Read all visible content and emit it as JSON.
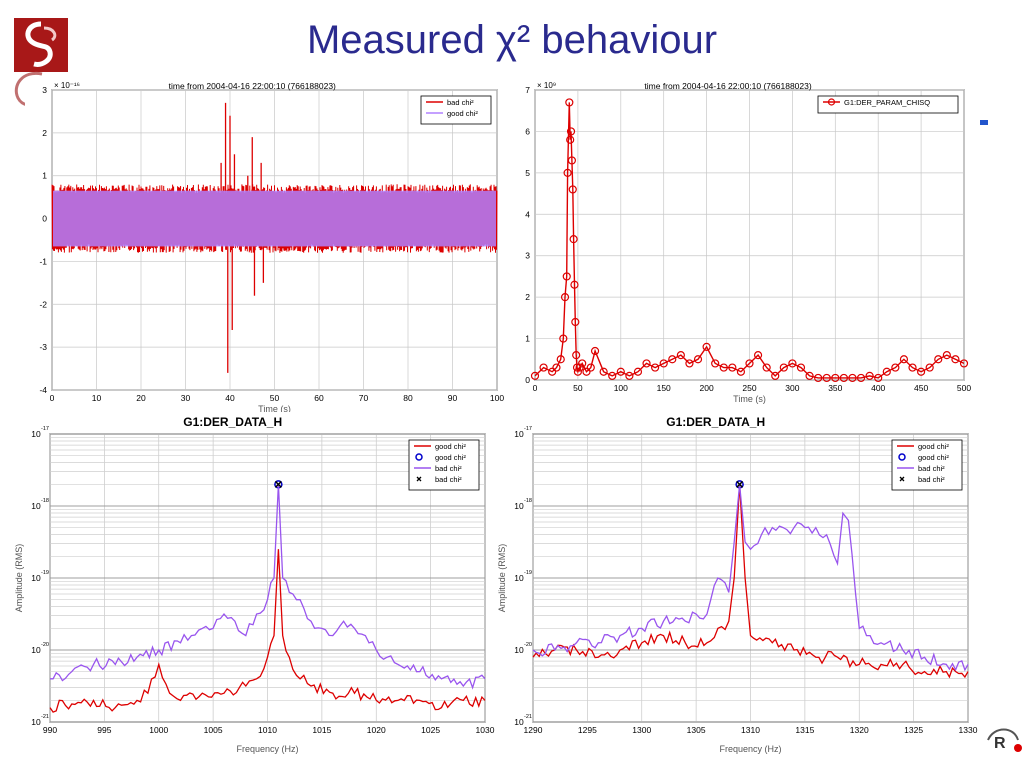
{
  "slide": {
    "title": "Measured χ² behaviour"
  },
  "chart_data": [
    {
      "id": "p1",
      "type": "line",
      "title": "time from 2004-04-16 22:00:10 (766188023)",
      "xlabel": "Time (s)",
      "ylabel": "",
      "exponent": "× 10⁻¹⁶",
      "xlim": [
        0,
        100
      ],
      "ylim": [
        -4,
        3
      ],
      "xticks": [
        "0",
        "10",
        "20",
        "30",
        "40",
        "50",
        "60",
        "70",
        "80",
        "90",
        "100"
      ],
      "yticks": [
        "-4",
        "-3",
        "-2",
        "-1",
        "0",
        "1",
        "2",
        "3"
      ],
      "legend_position": "top-right",
      "grid": true,
      "series": [
        {
          "name": "bad chi²",
          "color": "#dd0000",
          "envelope": 0.8,
          "bursts": [
            {
              "x": 38,
              "y": 1.3
            },
            {
              "x": 39,
              "y": 2.7
            },
            {
              "x": 39.5,
              "y": -3.6
            },
            {
              "x": 40,
              "y": 2.4
            },
            {
              "x": 40.5,
              "y": -2.6
            },
            {
              "x": 41,
              "y": 1.5
            },
            {
              "x": 44,
              "y": 1.0
            },
            {
              "x": 45,
              "y": 1.9
            },
            {
              "x": 45.5,
              "y": -1.8
            },
            {
              "x": 47,
              "y": 1.3
            },
            {
              "x": 47.5,
              "y": -1.5
            }
          ]
        },
        {
          "name": "good chi²",
          "color": "#b080ff",
          "envelope": 0.65
        }
      ]
    },
    {
      "id": "p2",
      "type": "line",
      "title": "time from 2004-04-16 22:00:10 (766188023)",
      "xlabel": "Time (s)",
      "ylabel": "",
      "exponent": "× 10⁹",
      "xlim": [
        0,
        500
      ],
      "ylim": [
        0,
        7
      ],
      "xticks": [
        "0",
        "50",
        "100",
        "150",
        "200",
        "250",
        "300",
        "350",
        "400",
        "450",
        "500"
      ],
      "yticks": [
        "0",
        "1",
        "2",
        "3",
        "4",
        "5",
        "6",
        "7"
      ],
      "legend_position": "top-right",
      "grid": true,
      "series": [
        {
          "name": "G1:DER_PARAM_CHISQ",
          "color": "#dd0000",
          "marker": "circle",
          "x": [
            0,
            10,
            20,
            25,
            30,
            33,
            35,
            37,
            38,
            40,
            41,
            42,
            43,
            44,
            45,
            46,
            47,
            48,
            49,
            50,
            52,
            55,
            60,
            65,
            70,
            80,
            90,
            100,
            110,
            120,
            130,
            140,
            150,
            160,
            170,
            180,
            190,
            200,
            210,
            220,
            230,
            240,
            250,
            260,
            270,
            280,
            290,
            300,
            310,
            320,
            330,
            340,
            350,
            360,
            370,
            380,
            390,
            400,
            410,
            420,
            430,
            440,
            450,
            460,
            470,
            480,
            490,
            500
          ],
          "y": [
            0.1,
            0.3,
            0.2,
            0.3,
            0.5,
            1.0,
            2.0,
            2.5,
            5.0,
            6.7,
            5.8,
            6.0,
            5.3,
            4.6,
            3.4,
            2.3,
            1.4,
            0.6,
            0.3,
            0.2,
            0.3,
            0.4,
            0.2,
            0.3,
            0.7,
            0.2,
            0.1,
            0.2,
            0.1,
            0.2,
            0.4,
            0.3,
            0.4,
            0.5,
            0.6,
            0.4,
            0.5,
            0.8,
            0.4,
            0.3,
            0.3,
            0.2,
            0.4,
            0.6,
            0.3,
            0.1,
            0.3,
            0.4,
            0.3,
            0.1,
            0.05,
            0.05,
            0.05,
            0.05,
            0.05,
            0.05,
            0.1,
            0.05,
            0.2,
            0.3,
            0.5,
            0.3,
            0.2,
            0.3,
            0.5,
            0.6,
            0.5,
            0.4
          ]
        }
      ]
    },
    {
      "id": "p3",
      "type": "line",
      "title": "G1:DER_DATA_H",
      "xlabel": "Frequency (Hz)",
      "ylabel": "Amplitude (RMS)",
      "log_y": true,
      "xlim": [
        990,
        1030
      ],
      "ylim_exp": [
        -21,
        -17
      ],
      "xticks": [
        "990",
        "995",
        "1000",
        "1005",
        "1010",
        "1015",
        "1020",
        "1025",
        "1030"
      ],
      "yticks": [
        "10",
        "10",
        "10",
        "10",
        "10"
      ],
      "ytick_exps": [
        "-21",
        "-20",
        "-19",
        "-18",
        "-17"
      ],
      "legend_position": "top-right",
      "grid": true,
      "series": [
        {
          "name": "good chi²",
          "color": "#dd0000",
          "style": "line",
          "x": [
            990,
            992,
            994,
            996,
            998,
            999,
            1000,
            1001,
            1002,
            1004,
            1006,
            1008,
            1009,
            1010,
            1010.6,
            1011,
            1011.4,
            1012,
            1013,
            1014,
            1016,
            1018,
            1020,
            1022,
            1024,
            1026,
            1028,
            1030
          ],
          "log_y": [
            -20.8,
            -20.75,
            -20.7,
            -20.8,
            -20.7,
            -20.6,
            -20.2,
            -20.6,
            -20.7,
            -20.6,
            -20.6,
            -20.5,
            -20.4,
            -20.1,
            -19.8,
            -18.6,
            -19.8,
            -20.1,
            -20.4,
            -20.5,
            -20.6,
            -20.6,
            -20.7,
            -20.7,
            -20.7,
            -20.8,
            -20.7,
            -20.7
          ]
        },
        {
          "name": "good chi²",
          "color": "#0000cc",
          "style": "circle",
          "x": [
            1011
          ],
          "log_y": [
            -17.7
          ]
        },
        {
          "name": "bad chi²",
          "color": "#9955ee",
          "style": "line",
          "x": [
            990,
            992,
            994,
            996,
            998,
            1000,
            1002,
            1003,
            1004,
            1005,
            1006,
            1007,
            1008,
            1009,
            1010,
            1010.6,
            1011,
            1011.4,
            1012,
            1013,
            1014,
            1015,
            1016,
            1017,
            1018,
            1019,
            1020,
            1021,
            1022,
            1024,
            1026,
            1028,
            1030
          ],
          "log_y": [
            -20.4,
            -20.3,
            -20.2,
            -20.2,
            -20.1,
            -20.0,
            -19.9,
            -19.8,
            -19.7,
            -19.7,
            -19.5,
            -19.6,
            -19.8,
            -19.5,
            -19.3,
            -19.0,
            -17.7,
            -19.0,
            -19.2,
            -19.3,
            -19.6,
            -19.7,
            -19.8,
            -19.6,
            -19.7,
            -19.8,
            -20.0,
            -20.1,
            -20.2,
            -20.3,
            -20.4,
            -20.5,
            -20.4
          ]
        },
        {
          "name": "bad chi²",
          "color": "#000000",
          "style": "x",
          "x": [
            1011
          ],
          "log_y": [
            -17.7
          ]
        }
      ]
    },
    {
      "id": "p4",
      "type": "line",
      "title": "G1:DER_DATA_H",
      "xlabel": "Frequency (Hz)",
      "ylabel": "Amplitude (RMS)",
      "log_y": true,
      "xlim": [
        1290,
        1330
      ],
      "ylim_exp": [
        -21,
        -17
      ],
      "xticks": [
        "1290",
        "1295",
        "1300",
        "1305",
        "1310",
        "1315",
        "1320",
        "1325",
        "1330"
      ],
      "yticks": [
        "10",
        "10",
        "10",
        "10",
        "10"
      ],
      "ytick_exps": [
        "-21",
        "-20",
        "-19",
        "-18",
        "-17"
      ],
      "legend_position": "top-right",
      "grid": true,
      "series": [
        {
          "name": "good chi²",
          "color": "#dd0000",
          "style": "line",
          "x": [
            1290,
            1292,
            1294,
            1296,
            1298,
            1300,
            1302,
            1304,
            1306,
            1307,
            1308,
            1308.5,
            1309,
            1309.5,
            1310,
            1312,
            1314,
            1316,
            1318,
            1320,
            1322,
            1324,
            1326,
            1328,
            1330
          ],
          "log_y": [
            -20.1,
            -20.0,
            -20.0,
            -20.1,
            -20.0,
            -19.9,
            -19.8,
            -19.9,
            -19.9,
            -19.7,
            -19.6,
            -19.0,
            -17.7,
            -19.0,
            -19.8,
            -19.9,
            -20.0,
            -20.1,
            -20.1,
            -20.2,
            -20.2,
            -20.2,
            -20.3,
            -20.3,
            -20.3
          ]
        },
        {
          "name": "good chi²",
          "color": "#0000cc",
          "style": "circle",
          "x": [
            1309
          ],
          "log_y": [
            -17.7
          ]
        },
        {
          "name": "bad chi²",
          "color": "#9955ee",
          "style": "line",
          "x": [
            1290,
            1292,
            1294,
            1296,
            1298,
            1300,
            1302,
            1304,
            1305,
            1306,
            1307,
            1308,
            1308.5,
            1309,
            1309.5,
            1310,
            1311,
            1312,
            1313,
            1314,
            1315,
            1316,
            1317,
            1318,
            1318.5,
            1319,
            1320,
            1321,
            1322,
            1324,
            1326,
            1328,
            1330
          ],
          "log_y": [
            -20.0,
            -20.0,
            -19.9,
            -19.9,
            -19.8,
            -19.7,
            -19.6,
            -19.6,
            -19.5,
            -19.5,
            -19.0,
            -19.2,
            -18.5,
            -17.7,
            -18.5,
            -18.6,
            -18.4,
            -18.3,
            -18.3,
            -18.3,
            -18.3,
            -18.3,
            -18.4,
            -18.8,
            -18.1,
            -18.2,
            -19.7,
            -19.8,
            -19.9,
            -20.0,
            -20.1,
            -20.2,
            -20.2
          ]
        },
        {
          "name": "bad chi²",
          "color": "#000000",
          "style": "x",
          "x": [
            1309
          ],
          "log_y": [
            -17.7
          ]
        }
      ]
    }
  ]
}
